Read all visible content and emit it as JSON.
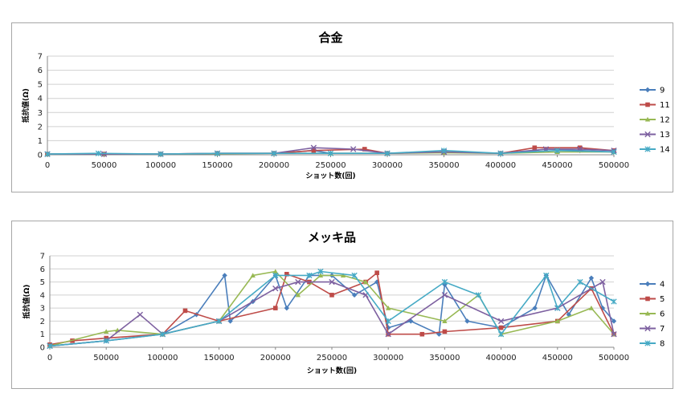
{
  "chart_data": [
    {
      "type": "line",
      "title": "合金",
      "xlabel": "ショット数(回)",
      "ylabel": "抵抗値(Ω)",
      "xlim": [
        0,
        500000
      ],
      "ylim": [
        0,
        7
      ],
      "x_ticks": [
        "0",
        "50000",
        "100000",
        "150000",
        "200000",
        "250000",
        "300000",
        "350000",
        "400000",
        "450000",
        "500000"
      ],
      "y_ticks": [
        "0",
        "1",
        "2",
        "3",
        "4",
        "5",
        "6",
        "7"
      ],
      "grid": true,
      "legend_position": "right",
      "series": [
        {
          "name": "9",
          "color": "#4a7ebb",
          "marker": "diamond",
          "x": [
            0,
            50000,
            100000,
            150000,
            200000,
            235000,
            250000,
            300000,
            350000,
            400000,
            430000,
            440000,
            470000,
            500000
          ],
          "y": [
            0.05,
            0.05,
            0.05,
            0.08,
            0.1,
            0.3,
            0.1,
            0.1,
            0.2,
            0.1,
            0.3,
            0.4,
            0.3,
            0.2
          ]
        },
        {
          "name": "11",
          "color": "#be4b48",
          "marker": "square",
          "x": [
            0,
            50000,
            100000,
            150000,
            200000,
            235000,
            280000,
            300000,
            350000,
            400000,
            430000,
            470000,
            500000
          ],
          "y": [
            0.05,
            0.05,
            0.05,
            0.1,
            0.1,
            0.3,
            0.4,
            0.1,
            0.2,
            0.1,
            0.5,
            0.5,
            0.3
          ]
        },
        {
          "name": "12",
          "color": "#98b954",
          "marker": "triangle",
          "x": [
            0,
            50000,
            100000,
            150000,
            200000,
            250000,
            300000,
            350000,
            400000,
            450000,
            500000
          ],
          "y": [
            0.05,
            0.05,
            0.05,
            0.08,
            0.1,
            0.1,
            0.1,
            0.15,
            0.1,
            0.2,
            0.2
          ]
        },
        {
          "name": "13",
          "color": "#7d60a0",
          "marker": "x",
          "x": [
            0,
            50000,
            100000,
            150000,
            200000,
            235000,
            270000,
            300000,
            350000,
            400000,
            440000,
            470000,
            500000
          ],
          "y": [
            0.05,
            0.05,
            0.05,
            0.1,
            0.1,
            0.5,
            0.4,
            0.1,
            0.2,
            0.1,
            0.4,
            0.4,
            0.3
          ]
        },
        {
          "name": "14",
          "color": "#46aac5",
          "marker": "star",
          "x": [
            0,
            45000,
            100000,
            150000,
            200000,
            250000,
            300000,
            350000,
            400000,
            450000,
            500000
          ],
          "y": [
            0.05,
            0.1,
            0.05,
            0.1,
            0.1,
            0.1,
            0.1,
            0.3,
            0.1,
            0.3,
            0.2
          ]
        }
      ]
    },
    {
      "type": "line",
      "title": "メッキ品",
      "xlabel": "ショット数(回)",
      "ylabel": "抵抗値(Ω)",
      "xlim": [
        0,
        500000
      ],
      "ylim": [
        0,
        7
      ],
      "x_ticks": [
        "0",
        "50000",
        "100000",
        "150000",
        "200000",
        "250000",
        "300000",
        "350000",
        "400000",
        "450000",
        "500000"
      ],
      "y_ticks": [
        "0",
        "1",
        "2",
        "3",
        "4",
        "5",
        "6",
        "7"
      ],
      "grid": true,
      "legend_position": "right",
      "series": [
        {
          "name": "4",
          "color": "#4a7ebb",
          "marker": "diamond",
          "x": [
            0,
            50000,
            100000,
            130000,
            155000,
            160000,
            180000,
            200000,
            210000,
            230000,
            250000,
            270000,
            290000,
            300000,
            320000,
            345000,
            350000,
            370000,
            400000,
            430000,
            440000,
            460000,
            480000,
            490000,
            500000
          ],
          "y": [
            0.1,
            0.5,
            1.0,
            2.5,
            5.5,
            2.0,
            3.5,
            5.5,
            3.0,
            5.5,
            5.5,
            4.0,
            5.0,
            1.5,
            2.0,
            1.0,
            4.8,
            2.0,
            1.5,
            3.0,
            5.5,
            2.5,
            5.3,
            3.0,
            2.0
          ]
        },
        {
          "name": "5",
          "color": "#be4b48",
          "marker": "square",
          "x": [
            0,
            20000,
            50000,
            100000,
            120000,
            150000,
            200000,
            210000,
            230000,
            250000,
            280000,
            290000,
            300000,
            330000,
            350000,
            400000,
            450000,
            480000,
            500000
          ],
          "y": [
            0.2,
            0.5,
            0.7,
            1.0,
            2.8,
            2.0,
            3.0,
            5.6,
            5.0,
            4.0,
            5.0,
            5.7,
            1.0,
            1.0,
            1.2,
            1.5,
            2.0,
            4.5,
            1.0
          ]
        },
        {
          "name": "6",
          "color": "#98b954",
          "marker": "triangle",
          "x": [
            0,
            50000,
            60000,
            100000,
            150000,
            180000,
            200000,
            220000,
            240000,
            260000,
            280000,
            300000,
            350000,
            380000,
            400000,
            450000,
            480000,
            500000
          ],
          "y": [
            0.1,
            1.2,
            1.3,
            1.0,
            2.0,
            5.5,
            5.8,
            4.0,
            5.5,
            5.5,
            5.0,
            3.0,
            2.0,
            4.0,
            1.0,
            2.0,
            3.0,
            1.0
          ]
        },
        {
          "name": "7",
          "color": "#7d60a0",
          "marker": "x",
          "x": [
            0,
            50000,
            80000,
            100000,
            150000,
            200000,
            220000,
            250000,
            280000,
            300000,
            350000,
            400000,
            450000,
            490000,
            500000
          ],
          "y": [
            0.1,
            0.5,
            2.5,
            1.0,
            2.0,
            4.5,
            5.0,
            5.0,
            4.0,
            1.0,
            4.0,
            2.0,
            3.0,
            5.0,
            1.0
          ]
        },
        {
          "name": "8",
          "color": "#46aac5",
          "marker": "star",
          "x": [
            0,
            50000,
            100000,
            150000,
            200000,
            230000,
            240000,
            270000,
            300000,
            350000,
            380000,
            400000,
            440000,
            450000,
            470000,
            500000
          ],
          "y": [
            0.1,
            0.5,
            1.0,
            2.0,
            5.5,
            5.5,
            5.8,
            5.5,
            2.0,
            5.0,
            4.0,
            1.0,
            5.5,
            3.0,
            5.0,
            3.5
          ]
        }
      ]
    }
  ]
}
